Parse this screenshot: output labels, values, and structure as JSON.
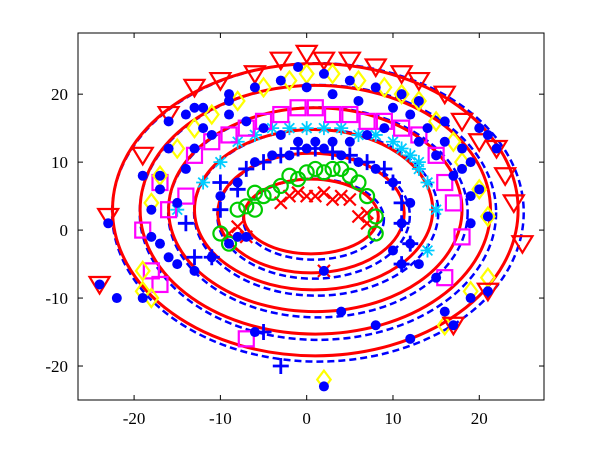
{
  "chart_data": {
    "type": "scatter",
    "title": "",
    "xlabel": "",
    "ylabel": "",
    "xlim": [
      -26.5,
      27.5
    ],
    "ylim": [
      -25,
      29
    ],
    "x_ticks": [
      -20,
      -10,
      0,
      10,
      20
    ],
    "y_ticks": [
      -20,
      -10,
      0,
      10,
      20
    ],
    "x_tick_labels": [
      "-20",
      "-10",
      "0",
      "10",
      "20"
    ],
    "y_tick_labels": [
      "-20",
      "-10",
      "0",
      "10",
      "20"
    ],
    "grid": false,
    "legend": "none",
    "fitted_ellipses": [
      {
        "cx": 0.5,
        "cy": 2.0,
        "rx": 7.8,
        "ry": 5.5
      },
      {
        "cx": 0.5,
        "cy": 2.5,
        "rx": 10.8,
        "ry": 8.8
      },
      {
        "cx": 0.8,
        "cy": 3.0,
        "rx": 13.8,
        "ry": 11.8
      },
      {
        "cx": 1.0,
        "cy": 3.0,
        "rx": 17.0,
        "ry": 15.0
      },
      {
        "cx": 1.0,
        "cy": 3.0,
        "rx": 20.3,
        "ry": 18.3
      },
      {
        "cx": 1.0,
        "cy": 3.0,
        "rx": 23.5,
        "ry": 21.5
      }
    ],
    "fit_lines": [
      {
        "name": "solid",
        "color": "#ff0000",
        "style": "solid",
        "width": 3
      },
      {
        "name": "dashed",
        "color": "#0000ff",
        "style": "dashed",
        "width": 2.5
      }
    ],
    "series": [
      {
        "marker": "x",
        "color": "#ff0000",
        "points": [
          [
            -3,
            4
          ],
          [
            -2,
            5
          ],
          [
            -1,
            5.5
          ],
          [
            0,
            5
          ],
          [
            1,
            5
          ],
          [
            2,
            5.5
          ],
          [
            3,
            4.5
          ],
          [
            4,
            5
          ],
          [
            5,
            4.5
          ],
          [
            6,
            2
          ],
          [
            7,
            1
          ],
          [
            -9,
            -0.5
          ],
          [
            -7,
            -1
          ],
          [
            -8,
            0.5
          ],
          [
            7,
            2.5
          ],
          [
            2,
            -6
          ]
        ]
      },
      {
        "marker": "o",
        "color": "#00cc00",
        "points": [
          [
            -10,
            -0.5
          ],
          [
            -9,
            -2
          ],
          [
            -7,
            3.5
          ],
          [
            -6,
            5.5
          ],
          [
            -5,
            5
          ],
          [
            -4,
            5.5
          ],
          [
            -3,
            6.5
          ],
          [
            -2,
            8
          ],
          [
            -1,
            7.5
          ],
          [
            0,
            8.5
          ],
          [
            1,
            9
          ],
          [
            2,
            8.5
          ],
          [
            3,
            9
          ],
          [
            4,
            9
          ],
          [
            5,
            8
          ],
          [
            6,
            7
          ],
          [
            7,
            5
          ],
          [
            8,
            2
          ],
          [
            8,
            -0.5
          ],
          [
            -6,
            3
          ],
          [
            -8,
            3
          ]
        ]
      },
      {
        "marker": "+",
        "color": "#0000ff",
        "points": [
          [
            -13,
            -4
          ],
          [
            -11,
            -4
          ],
          [
            -14,
            1
          ],
          [
            -10,
            3
          ],
          [
            -8,
            6
          ],
          [
            -10,
            7
          ],
          [
            -7,
            9
          ],
          [
            -5,
            10
          ],
          [
            -3,
            11
          ],
          [
            -1,
            12
          ],
          [
            1,
            12
          ],
          [
            3,
            11.5
          ],
          [
            5,
            11
          ],
          [
            7,
            10
          ],
          [
            9,
            9
          ],
          [
            10,
            7
          ],
          [
            11,
            4
          ],
          [
            11,
            1
          ],
          [
            12,
            -2
          ],
          [
            11,
            -5
          ],
          [
            -5,
            -15
          ],
          [
            -3,
            -20
          ]
        ]
      },
      {
        "marker": "*",
        "color": "#00ccff",
        "points": [
          [
            -12,
            7
          ],
          [
            -10,
            10
          ],
          [
            -8,
            13
          ],
          [
            -6,
            14
          ],
          [
            -4,
            15
          ],
          [
            -2,
            15
          ],
          [
            0,
            15
          ],
          [
            2,
            15
          ],
          [
            4,
            15
          ],
          [
            6,
            14
          ],
          [
            8,
            14
          ],
          [
            10,
            13
          ],
          [
            12,
            11
          ],
          [
            13,
            9
          ],
          [
            14,
            7
          ],
          [
            15,
            3
          ],
          [
            14,
            -3
          ],
          [
            -15,
            3
          ],
          [
            13,
            10
          ],
          [
            11,
            12
          ]
        ]
      },
      {
        "marker": "s",
        "color": "#ff00ff",
        "points": [
          [
            -19,
            0
          ],
          [
            -18,
            -6
          ],
          [
            -17,
            -8
          ],
          [
            -16,
            3
          ],
          [
            -14,
            5
          ],
          [
            -13,
            11
          ],
          [
            -11,
            13
          ],
          [
            -9,
            14
          ],
          [
            -7,
            15
          ],
          [
            -5,
            16
          ],
          [
            -3,
            17
          ],
          [
            -1,
            18
          ],
          [
            1,
            18
          ],
          [
            3,
            17
          ],
          [
            5,
            17
          ],
          [
            7,
            16
          ],
          [
            9,
            16
          ],
          [
            11,
            15
          ],
          [
            13,
            14
          ],
          [
            15,
            11
          ],
          [
            16,
            7
          ],
          [
            17,
            4
          ],
          [
            18,
            -1
          ],
          [
            16,
            -7
          ],
          [
            -7,
            -16
          ],
          [
            -17,
            7
          ]
        ]
      },
      {
        "marker": "d",
        "color": "#ffff00",
        "points": [
          [
            -18,
            -10
          ],
          [
            -19,
            -6
          ],
          [
            -18,
            4
          ],
          [
            -17,
            8
          ],
          [
            -15,
            12
          ],
          [
            -13,
            15
          ],
          [
            -11,
            17
          ],
          [
            -8,
            19
          ],
          [
            -5,
            21
          ],
          [
            -2,
            22
          ],
          [
            0,
            23
          ],
          [
            3,
            23
          ],
          [
            6,
            22
          ],
          [
            9,
            21
          ],
          [
            11,
            20
          ],
          [
            13,
            19
          ],
          [
            15,
            16
          ],
          [
            17,
            13
          ],
          [
            18,
            10
          ],
          [
            20,
            6
          ],
          [
            21,
            2
          ],
          [
            21,
            -7
          ],
          [
            19,
            -9
          ],
          [
            16,
            -14
          ],
          [
            2,
            -22
          ],
          [
            -19,
            -9
          ]
        ]
      },
      {
        "marker": "v",
        "color": "#ff0000",
        "points": [
          [
            -24,
            -8
          ],
          [
            -23,
            2
          ],
          [
            -19,
            11
          ],
          [
            -16,
            17
          ],
          [
            -13,
            21
          ],
          [
            -10,
            22
          ],
          [
            -6,
            23
          ],
          [
            -3,
            25
          ],
          [
            0,
            26
          ],
          [
            2,
            25
          ],
          [
            5,
            25
          ],
          [
            8,
            24
          ],
          [
            11,
            23
          ],
          [
            13,
            22
          ],
          [
            16,
            20
          ],
          [
            18,
            16
          ],
          [
            20,
            13
          ],
          [
            22,
            12
          ],
          [
            23,
            8
          ],
          [
            24,
            4
          ],
          [
            25,
            -2
          ],
          [
            21,
            -9
          ],
          [
            17,
            -14
          ]
        ]
      },
      {
        "marker": ".",
        "color": "#0000ff",
        "points": [
          [
            -24,
            -8
          ],
          [
            -23,
            1
          ],
          [
            -19,
            8
          ],
          [
            -16,
            16
          ],
          [
            -13,
            18
          ],
          [
            -9,
            19
          ],
          [
            -6,
            21
          ],
          [
            -3,
            22
          ],
          [
            -1,
            24
          ],
          [
            2,
            23
          ],
          [
            5,
            22
          ],
          [
            8,
            21
          ],
          [
            11,
            20
          ],
          [
            13,
            19
          ],
          [
            16,
            16
          ],
          [
            18,
            12
          ],
          [
            19,
            10
          ],
          [
            20,
            6
          ],
          [
            21,
            2
          ],
          [
            21,
            -9
          ],
          [
            19,
            -10
          ],
          [
            17,
            -14
          ],
          [
            15,
            -7
          ],
          [
            13,
            -5
          ],
          [
            12,
            -2
          ],
          [
            11,
            -5
          ],
          [
            10,
            -3
          ],
          [
            11,
            1
          ],
          [
            12,
            4
          ],
          [
            10,
            7
          ],
          [
            8,
            9
          ],
          [
            6,
            10
          ],
          [
            4,
            11
          ],
          [
            2,
            12
          ],
          [
            0,
            12
          ],
          [
            -2,
            11
          ],
          [
            -4,
            11
          ],
          [
            -6,
            10
          ],
          [
            -8,
            7
          ],
          [
            -10,
            5
          ],
          [
            -11,
            -4
          ],
          [
            -13,
            -6
          ],
          [
            -15,
            -5
          ],
          [
            -16,
            -4
          ],
          [
            -17,
            -2
          ],
          [
            -18,
            -1
          ],
          [
            -18,
            3
          ],
          [
            -17,
            6
          ],
          [
            -14,
            9
          ],
          [
            -13,
            12
          ],
          [
            -11,
            14
          ],
          [
            -12,
            15
          ],
          [
            -16,
            12
          ],
          [
            -17,
            8
          ],
          [
            -15,
            4
          ],
          [
            -8,
            -1
          ],
          [
            -9,
            -2
          ],
          [
            -7,
            -1
          ],
          [
            -6,
            -15
          ],
          [
            2,
            -23
          ],
          [
            -19,
            -10
          ],
          [
            -22,
            -10
          ],
          [
            9,
            15
          ],
          [
            7,
            14
          ],
          [
            5,
            13
          ],
          [
            3,
            13
          ],
          [
            1,
            13
          ],
          [
            -1,
            13
          ],
          [
            -3,
            14
          ],
          [
            -5,
            15
          ],
          [
            -7,
            16
          ],
          [
            -9,
            17
          ],
          [
            13,
            13
          ],
          [
            15,
            11
          ],
          [
            17,
            8
          ],
          [
            16,
            -12
          ],
          [
            20,
            15
          ],
          [
            21,
            14
          ],
          [
            22,
            12
          ],
          [
            -14,
            17
          ],
          [
            -12,
            18
          ],
          [
            -9,
            20
          ],
          [
            0,
            21
          ],
          [
            3,
            20
          ],
          [
            6,
            19
          ],
          [
            10,
            18
          ],
          [
            12,
            17
          ],
          [
            14,
            15
          ],
          [
            16,
            13
          ],
          [
            18,
            9
          ],
          [
            19,
            5
          ],
          [
            19,
            1
          ],
          [
            2,
            -6
          ],
          [
            4,
            -12
          ],
          [
            8,
            -14
          ],
          [
            12,
            -16
          ]
        ]
      }
    ]
  }
}
